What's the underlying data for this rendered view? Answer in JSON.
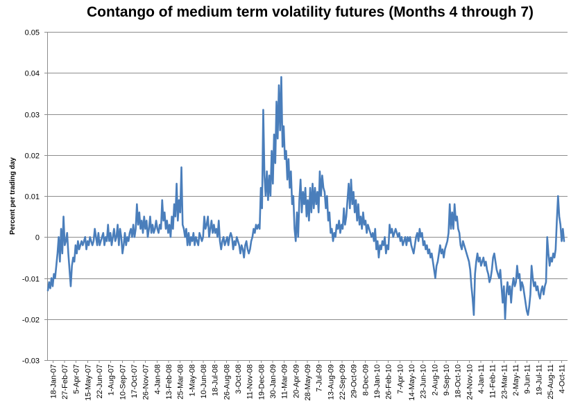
{
  "chart_data": {
    "type": "line",
    "title": "Contango of medium term volatility futures (Months 4 through 7)",
    "xlabel": "",
    "ylabel": "Percent per trading day",
    "ylim": [
      -0.03,
      0.05
    ],
    "yticks": [
      0.05,
      0.04,
      0.03,
      0.02,
      0.01,
      0,
      -0.01,
      -0.02,
      -0.03
    ],
    "ytick_labels": [
      "0.05",
      "0.04",
      "0.03",
      "0.02",
      "0.01",
      "0",
      "-0.01",
      "-0.02",
      "-0.03"
    ],
    "grid": true,
    "x_tick_labels": [
      "18-Jan-07",
      "27-Feb-07",
      "5-Apr-07",
      "15-May-07",
      "22-Jun-07",
      "1-Aug-07",
      "10-Sep-07",
      "17-Oct-07",
      "26-Nov-07",
      "4-Jan-08",
      "13-Feb-08",
      "25-Mar-08",
      "1-May-08",
      "10-Jun-08",
      "18-Jul-08",
      "26-Aug-08",
      "3-Oct-08",
      "11-Nov-08",
      "19-Dec-08",
      "30-Jan-09",
      "11-Mar-09",
      "20-Apr-09",
      "28-May-09",
      "7-Jul-09",
      "13-Aug-09",
      "22-Sep-09",
      "29-Oct-09",
      "8-Dec-09",
      "19-Jan-10",
      "26-Feb-10",
      "7-Apr-10",
      "14-May-10",
      "23-Jun-10",
      "2-Aug-10",
      "9-Sep-10",
      "18-Oct-10",
      "24-Nov-10",
      "4-Jan-11",
      "11-Feb-11",
      "23-Mar-11",
      "2-May-11",
      "9-Jun-11",
      "19-Jul-11",
      "25-Aug-11",
      "4-Oct-11"
    ],
    "color": "#4a7ebb",
    "series": [
      {
        "values": [
          -0.013,
          -0.011,
          -0.0125,
          -0.01,
          -0.012,
          -0.009,
          -0.01,
          -0.007,
          -0.004,
          0.0,
          -0.006,
          0.002,
          -0.004,
          0.005,
          -0.002,
          -0.001,
          0.001,
          -0.004,
          -0.008,
          -0.012,
          -0.007,
          -0.005,
          -0.006,
          -0.002,
          -0.004,
          -0.001,
          -0.003,
          -0.002,
          -0.001,
          -0.002,
          -0.001,
          0.0,
          -0.003,
          -0.001,
          -0.002,
          0.0,
          -0.001,
          -0.002,
          -0.001,
          0.002,
          0.0,
          -0.002,
          0.001,
          -0.002,
          -0.001,
          0.0,
          0.001,
          -0.002,
          0.0,
          -0.001,
          0.003,
          -0.001,
          0.001,
          -0.002,
          0.0,
          0.002,
          -0.001,
          0.0,
          0.003,
          -0.002,
          0.002,
          0.0,
          -0.004,
          -0.002,
          0.001,
          -0.002,
          0.0,
          -0.001,
          0.001,
          0.002,
          0.0,
          0.003,
          0.0,
          0.002,
          0.008,
          0.003,
          0.006,
          0.002,
          0.004,
          0.001,
          0.005,
          0.002,
          0.004,
          0.0,
          0.002,
          0.005,
          0.001,
          0.003,
          0.001,
          0.002,
          0.004,
          0.002,
          0.001,
          0.003,
          0.002,
          0.009,
          0.004,
          0.006,
          0.002,
          0.004,
          0.001,
          0.003,
          0.0,
          0.005,
          0.002,
          0.008,
          0.005,
          0.013,
          0.004,
          0.009,
          0.006,
          0.017,
          0.003,
          0.002,
          0.0,
          0.002,
          -0.002,
          0.001,
          -0.002,
          0.0,
          -0.001,
          0.001,
          -0.002,
          0.0,
          -0.001,
          -0.002,
          0.001,
          0.0,
          -0.001,
          0.0,
          0.005,
          0.002,
          0.003,
          0.005,
          0.0,
          0.002,
          0.004,
          0.001,
          0.003,
          0.001,
          0.002,
          0.0,
          0.004,
          -0.001,
          -0.003,
          -0.001,
          0.0,
          -0.002,
          -0.001,
          0.0,
          -0.002,
          0.0,
          0.001,
          0.0,
          -0.003,
          -0.001,
          -0.002,
          0.0,
          -0.001,
          -0.002,
          -0.004,
          -0.002,
          -0.003,
          -0.005,
          -0.002,
          -0.001,
          -0.003,
          -0.004,
          -0.003,
          -0.001,
          0.0,
          0.002,
          0.001,
          0.003,
          0.002,
          0.003,
          0.002,
          0.012,
          0.007,
          0.031,
          0.015,
          0.01,
          0.016,
          0.009,
          0.015,
          0.01,
          0.021,
          0.013,
          0.025,
          0.018,
          0.033,
          0.024,
          0.037,
          0.026,
          0.039,
          0.022,
          0.027,
          0.019,
          0.021,
          0.014,
          0.019,
          0.012,
          0.016,
          0.008,
          0.01,
          0.002,
          -0.001,
          0.006,
          0.0,
          0.009,
          0.014,
          0.006,
          0.011,
          0.008,
          0.012,
          0.005,
          0.009,
          0.004,
          0.012,
          0.006,
          0.013,
          0.007,
          0.012,
          0.008,
          0.011,
          0.006,
          0.016,
          0.01,
          0.015,
          0.012,
          0.011,
          0.007,
          0.01,
          0.004,
          0.006,
          0.001,
          0.002,
          -0.001,
          0.001,
          0.0,
          0.003,
          0.002,
          0.004,
          0.001,
          0.003,
          0.002,
          0.007,
          0.003,
          0.005,
          0.009,
          0.013,
          0.007,
          0.014,
          0.008,
          0.011,
          0.006,
          0.009,
          0.004,
          0.008,
          0.003,
          0.005,
          0.002,
          0.006,
          0.003,
          0.004,
          0.001,
          0.003,
          0.002,
          0.001,
          0.0,
          0.001,
          -0.001,
          0.002,
          -0.003,
          -0.001,
          -0.005,
          -0.002,
          -0.003,
          -0.001,
          -0.002,
          0.0,
          -0.004,
          -0.002,
          -0.003,
          0.003,
          0.001,
          0.002,
          0.0,
          0.001,
          0.002,
          0.001,
          0.0,
          0.001,
          -0.001,
          0.0,
          -0.002,
          -0.001,
          0.0,
          -0.002,
          0.0,
          -0.001,
          0.0,
          -0.002,
          -0.003,
          -0.004,
          -0.002,
          0.0,
          0.001,
          -0.001,
          0.002,
          0.0,
          0.001,
          -0.002,
          -0.001,
          -0.003,
          -0.002,
          -0.004,
          -0.003,
          -0.005,
          -0.004,
          -0.006,
          -0.008,
          -0.01,
          -0.007,
          -0.006,
          -0.004,
          -0.002,
          -0.004,
          -0.003,
          -0.005,
          -0.003,
          -0.002,
          -0.001,
          0.001,
          0.008,
          0.002,
          0.006,
          0.002,
          0.008,
          0.004,
          0.005,
          0.002,
          0.001,
          -0.002,
          -0.003,
          -0.001,
          -0.002,
          -0.003,
          -0.004,
          -0.005,
          -0.006,
          -0.008,
          -0.012,
          -0.015,
          -0.019,
          -0.009,
          -0.006,
          -0.004,
          -0.006,
          -0.005,
          -0.007,
          -0.006,
          -0.005,
          -0.007,
          -0.006,
          -0.008,
          -0.009,
          -0.011,
          -0.01,
          -0.008,
          -0.005,
          -0.004,
          -0.006,
          -0.008,
          -0.009,
          -0.01,
          -0.008,
          -0.012,
          -0.016,
          -0.012,
          -0.02,
          -0.014,
          -0.011,
          -0.014,
          -0.012,
          -0.016,
          -0.012,
          -0.01,
          -0.012,
          -0.011,
          -0.007,
          -0.01,
          -0.009,
          -0.013,
          -0.011,
          -0.012,
          -0.014,
          -0.016,
          -0.018,
          -0.019,
          -0.017,
          -0.014,
          -0.007,
          -0.01,
          -0.012,
          -0.011,
          -0.013,
          -0.012,
          -0.014,
          -0.015,
          -0.013,
          -0.012,
          -0.014,
          -0.012,
          -0.011,
          0.0,
          -0.004,
          -0.007,
          -0.005,
          -0.006,
          -0.004,
          -0.005,
          -0.003,
          0.004,
          0.01,
          0.005,
          0.003,
          -0.001,
          0.002,
          -0.001
        ]
      }
    ]
  }
}
